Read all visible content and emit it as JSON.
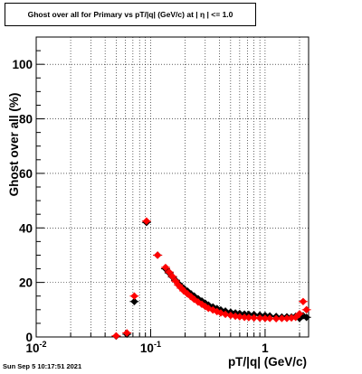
{
  "chart_data": {
    "type": "scatter",
    "title": "Ghost over all for Primary vs pT/|q| (GeV/c) at | η | <= 1.0",
    "xlabel": "pT/|q| (GeV/c)",
    "ylabel": "Ghost over all (%)",
    "xscale": "log",
    "xlim": [
      0.01,
      2.4
    ],
    "ylim": [
      0,
      110
    ],
    "x_tick_labels": [
      "10^-2",
      "10^-1",
      "1"
    ],
    "y_tick_labels": [
      "0",
      "20",
      "40",
      "60",
      "80",
      "100"
    ],
    "y_ticks": [
      0,
      20,
      40,
      60,
      80,
      100
    ],
    "grid": true,
    "legend": "none",
    "series": [
      {
        "color": "#000000",
        "marker": "diamond",
        "points": [
          [
            0.05,
            0.3
          ],
          [
            0.062,
            1.0
          ],
          [
            0.072,
            13.0
          ],
          [
            0.092,
            42.0
          ],
          [
            0.115,
            30.0
          ],
          [
            0.135,
            25.0
          ],
          [
            0.145,
            23.5
          ],
          [
            0.155,
            22.0
          ],
          [
            0.165,
            20.8
          ],
          [
            0.175,
            19.6
          ],
          [
            0.185,
            18.6
          ],
          [
            0.195,
            17.8
          ],
          [
            0.21,
            16.8
          ],
          [
            0.225,
            15.8
          ],
          [
            0.24,
            15.0
          ],
          [
            0.26,
            14.0
          ],
          [
            0.28,
            13.2
          ],
          [
            0.3,
            12.4
          ],
          [
            0.32,
            11.7
          ],
          [
            0.35,
            11.0
          ],
          [
            0.38,
            10.4
          ],
          [
            0.41,
            9.9
          ],
          [
            0.45,
            9.5
          ],
          [
            0.5,
            9.1
          ],
          [
            0.55,
            8.8
          ],
          [
            0.6,
            8.6
          ],
          [
            0.66,
            8.4
          ],
          [
            0.72,
            8.3
          ],
          [
            0.8,
            8.2
          ],
          [
            0.9,
            8.0
          ],
          [
            1.0,
            7.9
          ],
          [
            1.1,
            7.7
          ],
          [
            1.25,
            7.5
          ],
          [
            1.4,
            7.3
          ],
          [
            1.55,
            7.4
          ],
          [
            1.7,
            7.3
          ],
          [
            1.85,
            7.6
          ],
          [
            2.0,
            6.8
          ],
          [
            2.15,
            7.8
          ],
          [
            2.3,
            7.2
          ]
        ]
      },
      {
        "color": "#ff0000",
        "marker": "diamond",
        "points": [
          [
            0.05,
            0.4
          ],
          [
            0.062,
            1.5
          ],
          [
            0.072,
            15.0
          ],
          [
            0.092,
            42.5
          ],
          [
            0.115,
            30.0
          ],
          [
            0.135,
            25.5
          ],
          [
            0.145,
            23.8
          ],
          [
            0.155,
            22.2
          ],
          [
            0.165,
            20.5
          ],
          [
            0.175,
            19.0
          ],
          [
            0.185,
            17.9
          ],
          [
            0.195,
            16.9
          ],
          [
            0.21,
            15.8
          ],
          [
            0.225,
            14.8
          ],
          [
            0.24,
            13.8
          ],
          [
            0.26,
            12.8
          ],
          [
            0.28,
            12.0
          ],
          [
            0.3,
            11.2
          ],
          [
            0.32,
            10.5
          ],
          [
            0.35,
            9.9
          ],
          [
            0.38,
            9.3
          ],
          [
            0.41,
            8.8
          ],
          [
            0.45,
            8.3
          ],
          [
            0.5,
            7.9
          ],
          [
            0.55,
            7.6
          ],
          [
            0.6,
            7.4
          ],
          [
            0.66,
            7.2
          ],
          [
            0.72,
            7.1
          ],
          [
            0.8,
            7.0
          ],
          [
            0.9,
            6.9
          ],
          [
            1.0,
            6.8
          ],
          [
            1.1,
            6.8
          ],
          [
            1.25,
            6.7
          ],
          [
            1.4,
            6.8
          ],
          [
            1.55,
            6.8
          ],
          [
            1.7,
            7.0
          ],
          [
            1.85,
            7.2
          ],
          [
            2.0,
            8.5
          ],
          [
            2.15,
            13.0
          ],
          [
            2.3,
            10.0
          ]
        ]
      }
    ]
  },
  "footer": {
    "timestamp": "Sun Sep  5 10:17:51 2021"
  }
}
